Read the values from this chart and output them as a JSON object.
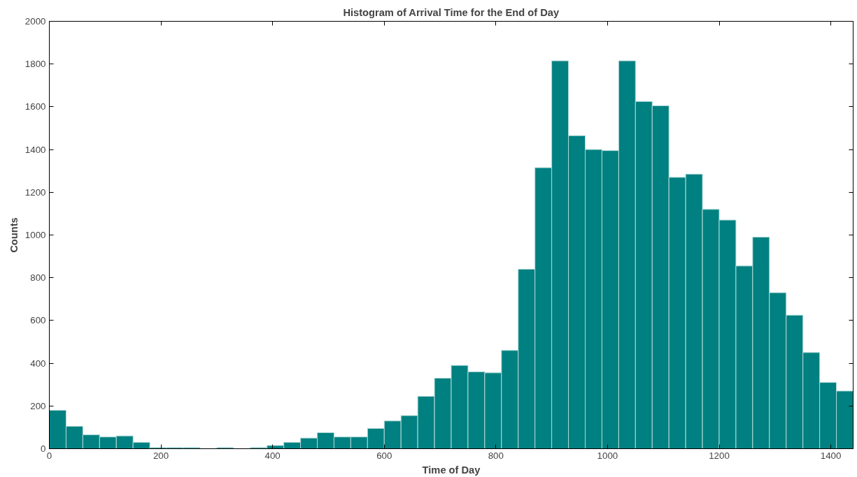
{
  "chart_data": {
    "type": "histogram",
    "title": "Histogram of Arrival Time for the End of Day",
    "xlabel": "Time of Day",
    "ylabel": "Counts",
    "color": "#008080",
    "bins": [
      0,
      30,
      60,
      90,
      120,
      150,
      180,
      210,
      240,
      270,
      300,
      330,
      360,
      390,
      420,
      450,
      480,
      510,
      540,
      570,
      600,
      630,
      660,
      690,
      720,
      750,
      780,
      810,
      840,
      870,
      900,
      930,
      960,
      990,
      1020,
      1050,
      1080,
      1110,
      1140,
      1170,
      1200,
      1230,
      1260,
      1290,
      1320,
      1350,
      1380,
      1410,
      1440
    ],
    "values": [
      180,
      105,
      65,
      55,
      60,
      30,
      5,
      5,
      5,
      0,
      5,
      0,
      5,
      15,
      30,
      50,
      75,
      55,
      55,
      95,
      130,
      155,
      245,
      330,
      390,
      360,
      355,
      460,
      840,
      1315,
      1815,
      1465,
      1400,
      1395,
      1815,
      1625,
      1605,
      1270,
      1285,
      1120,
      1070,
      855,
      990,
      730,
      625,
      450,
      310,
      270
    ],
    "xlim": [
      0,
      1440
    ],
    "ylim": [
      0,
      2000
    ],
    "xticks": [
      0,
      200,
      400,
      600,
      800,
      1000,
      1200,
      1400
    ],
    "yticks": [
      0,
      200,
      400,
      600,
      800,
      1000,
      1200,
      1400,
      1600,
      1800,
      2000
    ],
    "grid": false
  }
}
